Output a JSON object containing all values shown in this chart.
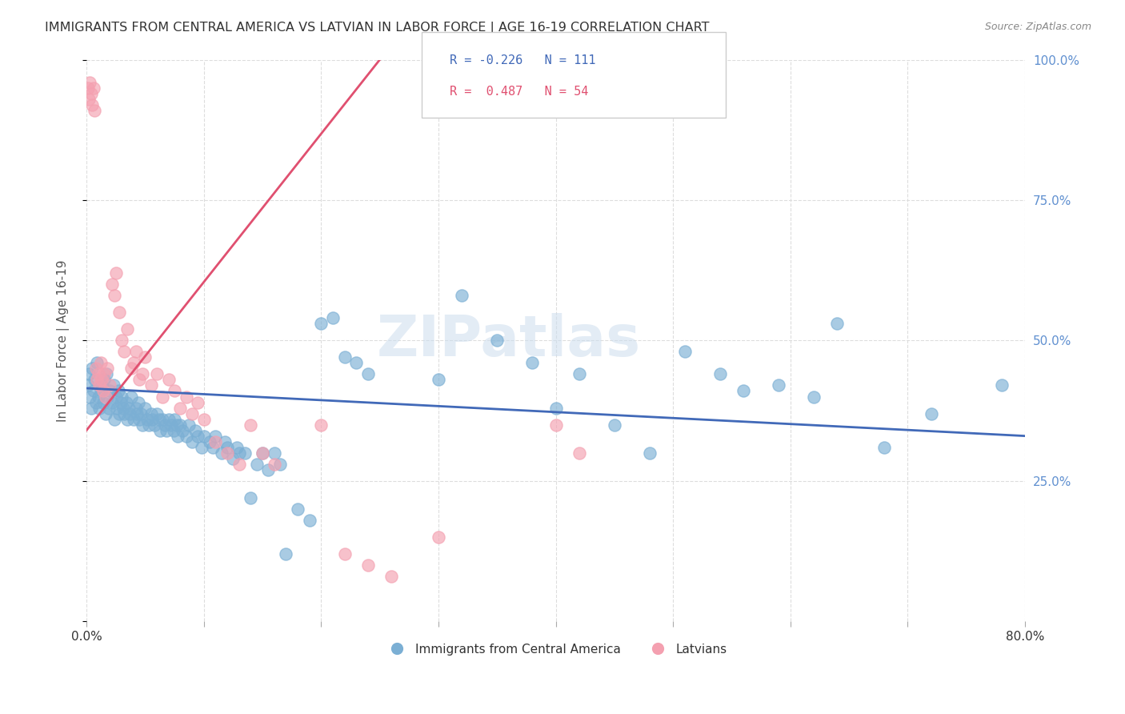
{
  "title": "IMMIGRANTS FROM CENTRAL AMERICA VS LATVIAN IN LABOR FORCE | AGE 16-19 CORRELATION CHART",
  "source_text": "Source: ZipAtlas.com",
  "ylabel": "In Labor Force | Age 16-19",
  "xlabel": "",
  "xlim": [
    0.0,
    0.8
  ],
  "ylim": [
    0.0,
    1.0
  ],
  "xticks": [
    0.0,
    0.1,
    0.2,
    0.3,
    0.4,
    0.5,
    0.6,
    0.7,
    0.8
  ],
  "xticklabels": [
    "0.0%",
    "",
    "",
    "",
    "",
    "",
    "",
    "",
    "80.0%"
  ],
  "yticks_right": [
    0.0,
    0.25,
    0.5,
    0.75,
    1.0
  ],
  "ytick_labels_right": [
    "",
    "25.0%",
    "50.0%",
    "75.0%",
    "100.0%"
  ],
  "blue_color": "#7bafd4",
  "pink_color": "#f4a0b0",
  "blue_line_color": "#4169b8",
  "pink_line_color": "#e05070",
  "blue_R": -0.226,
  "blue_N": 111,
  "pink_R": 0.487,
  "pink_N": 54,
  "watermark": "ZIPatlas",
  "legend_label_blue": "Immigrants from Central America",
  "legend_label_pink": "Latvians",
  "background_color": "#ffffff",
  "grid_color": "#dddddd",
  "title_color": "#333333",
  "axis_label_color": "#555555",
  "right_tick_color": "#6090d0",
  "blue_scatter_x": [
    0.001,
    0.002,
    0.003,
    0.004,
    0.005,
    0.006,
    0.007,
    0.008,
    0.009,
    0.01,
    0.011,
    0.012,
    0.013,
    0.014,
    0.015,
    0.016,
    0.017,
    0.018,
    0.019,
    0.02,
    0.022,
    0.023,
    0.024,
    0.025,
    0.026,
    0.027,
    0.028,
    0.029,
    0.03,
    0.031,
    0.032,
    0.034,
    0.035,
    0.036,
    0.037,
    0.038,
    0.04,
    0.042,
    0.043,
    0.044,
    0.045,
    0.046,
    0.048,
    0.05,
    0.052,
    0.053,
    0.055,
    0.056,
    0.058,
    0.06,
    0.062,
    0.063,
    0.065,
    0.067,
    0.068,
    0.07,
    0.072,
    0.074,
    0.075,
    0.077,
    0.078,
    0.08,
    0.082,
    0.085,
    0.087,
    0.09,
    0.093,
    0.095,
    0.098,
    0.1,
    0.105,
    0.108,
    0.11,
    0.115,
    0.118,
    0.12,
    0.125,
    0.128,
    0.13,
    0.135,
    0.14,
    0.145,
    0.15,
    0.155,
    0.16,
    0.165,
    0.17,
    0.18,
    0.19,
    0.2,
    0.21,
    0.22,
    0.23,
    0.24,
    0.3,
    0.32,
    0.35,
    0.38,
    0.4,
    0.42,
    0.45,
    0.48,
    0.51,
    0.54,
    0.56,
    0.59,
    0.62,
    0.64,
    0.68,
    0.72,
    0.78
  ],
  "blue_scatter_y": [
    0.42,
    0.44,
    0.4,
    0.38,
    0.45,
    0.41,
    0.43,
    0.39,
    0.46,
    0.4,
    0.38,
    0.41,
    0.42,
    0.39,
    0.43,
    0.37,
    0.44,
    0.4,
    0.38,
    0.41,
    0.39,
    0.42,
    0.36,
    0.4,
    0.38,
    0.41,
    0.37,
    0.39,
    0.4,
    0.38,
    0.37,
    0.39,
    0.36,
    0.38,
    0.37,
    0.4,
    0.36,
    0.38,
    0.37,
    0.39,
    0.36,
    0.37,
    0.35,
    0.38,
    0.36,
    0.35,
    0.37,
    0.36,
    0.35,
    0.37,
    0.36,
    0.34,
    0.36,
    0.35,
    0.34,
    0.36,
    0.35,
    0.34,
    0.36,
    0.35,
    0.33,
    0.35,
    0.34,
    0.33,
    0.35,
    0.32,
    0.34,
    0.33,
    0.31,
    0.33,
    0.32,
    0.31,
    0.33,
    0.3,
    0.32,
    0.31,
    0.29,
    0.31,
    0.3,
    0.3,
    0.22,
    0.28,
    0.3,
    0.27,
    0.3,
    0.28,
    0.12,
    0.2,
    0.18,
    0.53,
    0.54,
    0.47,
    0.46,
    0.44,
    0.43,
    0.58,
    0.5,
    0.46,
    0.38,
    0.44,
    0.35,
    0.3,
    0.48,
    0.44,
    0.41,
    0.42,
    0.4,
    0.53,
    0.31,
    0.37,
    0.42
  ],
  "pink_scatter_x": [
    0.001,
    0.002,
    0.003,
    0.004,
    0.005,
    0.006,
    0.007,
    0.008,
    0.009,
    0.01,
    0.011,
    0.012,
    0.013,
    0.014,
    0.015,
    0.016,
    0.018,
    0.02,
    0.022,
    0.024,
    0.025,
    0.028,
    0.03,
    0.032,
    0.035,
    0.038,
    0.04,
    0.042,
    0.045,
    0.048,
    0.05,
    0.055,
    0.06,
    0.065,
    0.07,
    0.075,
    0.08,
    0.085,
    0.09,
    0.095,
    0.1,
    0.11,
    0.12,
    0.13,
    0.14,
    0.15,
    0.16,
    0.2,
    0.22,
    0.24,
    0.26,
    0.3,
    0.4,
    0.42
  ],
  "pink_scatter_y": [
    0.95,
    0.93,
    0.96,
    0.94,
    0.92,
    0.95,
    0.91,
    0.45,
    0.43,
    0.44,
    0.42,
    0.46,
    0.43,
    0.41,
    0.44,
    0.4,
    0.45,
    0.42,
    0.6,
    0.58,
    0.62,
    0.55,
    0.5,
    0.48,
    0.52,
    0.45,
    0.46,
    0.48,
    0.43,
    0.44,
    0.47,
    0.42,
    0.44,
    0.4,
    0.43,
    0.41,
    0.38,
    0.4,
    0.37,
    0.39,
    0.36,
    0.32,
    0.3,
    0.28,
    0.35,
    0.3,
    0.28,
    0.35,
    0.12,
    0.1,
    0.08,
    0.15,
    0.35,
    0.3
  ],
  "blue_trend_x": [
    0.0,
    0.8
  ],
  "blue_trend_y": [
    0.415,
    0.33
  ],
  "pink_trend_x": [
    0.0,
    0.25
  ],
  "pink_trend_y": [
    0.34,
    1.0
  ]
}
